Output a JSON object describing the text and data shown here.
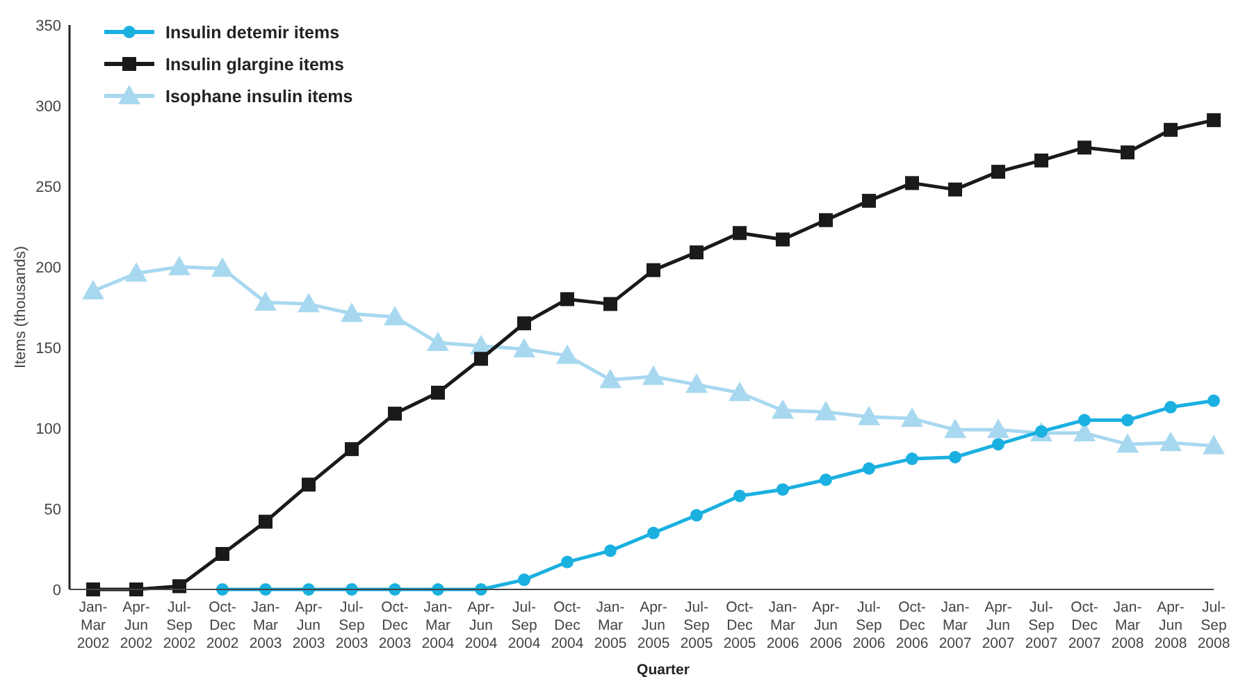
{
  "chart_data": {
    "type": "line",
    "xlabel": "Quarter",
    "ylabel": "Items (thousands)",
    "categories": [
      "Jan-Mar 2002",
      "Apr-Jun 2002",
      "Jul-Sep 2002",
      "Oct-Dec 2002",
      "Jan-Mar 2003",
      "Apr-Jun 2003",
      "Jul-Sep 2003",
      "Oct-Dec 2003",
      "Jan-Mar 2004",
      "Apr-Jun 2004",
      "Jul-Sep 2004",
      "Oct-Dec 2004",
      "Jan-Mar 2005",
      "Apr-Jun 2005",
      "Jul-Sep 2005",
      "Oct-Dec 2005",
      "Jan-Mar 2006",
      "Apr-Jun 2006",
      "Jul-Sep 2006",
      "Oct-Dec 2006",
      "Jan-Mar 2007",
      "Apr-Jun 2007",
      "Jul-Sep 2007",
      "Oct-Dec 2007",
      "Jan-Mar 2008",
      "Apr-Jun 2008",
      "Jul-Sep 2008"
    ],
    "series": [
      {
        "name": "Insulin detemir items",
        "color": "#1ab0e0",
        "marker": "circle",
        "values": [
          null,
          null,
          null,
          0,
          0,
          0,
          0,
          0,
          0,
          0,
          6,
          17,
          24,
          35,
          46,
          58,
          62,
          68,
          75,
          81,
          82,
          90,
          98,
          105,
          105,
          113,
          117
        ]
      },
      {
        "name": "Insulin glargine items",
        "color": "#1a1a1a",
        "marker": "square",
        "values": [
          0,
          0,
          2,
          22,
          42,
          65,
          87,
          109,
          122,
          143,
          165,
          180,
          177,
          198,
          209,
          221,
          217,
          229,
          241,
          252,
          248,
          259,
          266,
          274,
          271,
          285,
          291
        ]
      },
      {
        "name": "Isophane insulin items",
        "color": "#a8d8f0",
        "marker": "triangle",
        "values": [
          185,
          196,
          200,
          199,
          178,
          177,
          171,
          169,
          153,
          151,
          149,
          145,
          130,
          132,
          127,
          122,
          111,
          110,
          107,
          106,
          99,
          99,
          97,
          97,
          90,
          91,
          89
        ]
      }
    ],
    "ylim": [
      0,
      350
    ],
    "yticks": [
      0,
      50,
      100,
      150,
      200,
      250,
      300,
      350
    ],
    "grid": false,
    "legend": "top left"
  }
}
